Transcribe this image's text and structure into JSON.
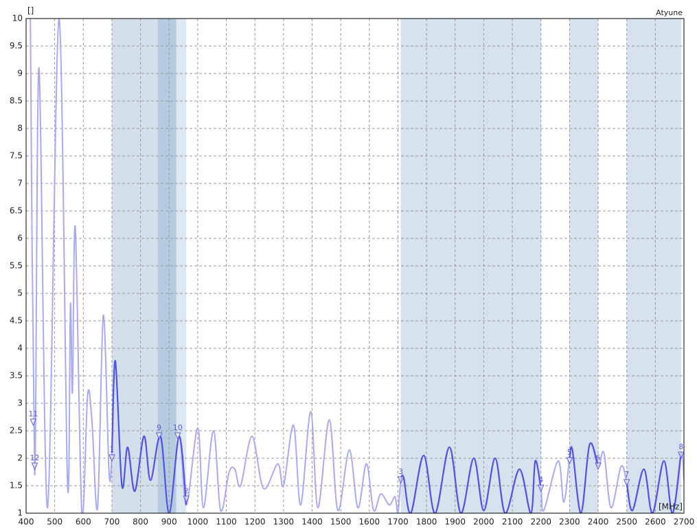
{
  "chart_data": {
    "type": "line",
    "y_unit": "[]",
    "x_unit": "[MHz]",
    "corner_label": "Atyune",
    "x": [
      415,
      430,
      445,
      475,
      515,
      545,
      555,
      562,
      572,
      595,
      615,
      630,
      650,
      670,
      690,
      700,
      712,
      735,
      755,
      780,
      812,
      835,
      870,
      900,
      935,
      960,
      1000,
      1020,
      1055,
      1080,
      1110,
      1130,
      1150,
      1190,
      1230,
      1280,
      1300,
      1335,
      1360,
      1395,
      1420,
      1460,
      1490,
      1530,
      1560,
      1590,
      1615,
      1640,
      1670,
      1690,
      1700,
      1710,
      1720,
      1745,
      1790,
      1830,
      1880,
      1920,
      1965,
      2000,
      2040,
      2075,
      2125,
      2165,
      2180,
      2200,
      2210,
      2260,
      2280,
      2300,
      2310,
      2340,
      2370,
      2400,
      2420,
      2445,
      2480,
      2500,
      2520,
      2560,
      2590,
      2630,
      2660,
      2690,
      2700
    ],
    "series": [
      {
        "color": "#aaaaf4",
        "highlight_color": "#5252e6",
        "values": [
          10,
          1.7,
          9.1,
          1.1,
          10,
          1.5,
          4.8,
          3.2,
          6.2,
          1.0,
          3.15,
          2.7,
          1.1,
          4.6,
          1.75,
          2.1,
          3.77,
          1.5,
          2.2,
          1.4,
          2.4,
          1.6,
          2.4,
          1.0,
          2.4,
          1.15,
          2.55,
          1.1,
          2.5,
          1.05,
          1.75,
          1.8,
          1.5,
          2.4,
          1.45,
          1.9,
          1.5,
          2.6,
          1.15,
          2.85,
          1.1,
          2.7,
          1.05,
          2.15,
          1.1,
          1.9,
          1.05,
          1.35,
          1.15,
          1.3,
          1.0,
          1.6,
          1.65,
          1.0,
          2.05,
          1.0,
          2.2,
          1.0,
          2.0,
          1.05,
          2.0,
          1.0,
          1.8,
          1.0,
          1.95,
          1.45,
          1.05,
          1.95,
          1.2,
          2.0,
          2.15,
          1.0,
          2.25,
          1.85,
          2.1,
          1.1,
          1.85,
          1.55,
          1.05,
          1.8,
          1.0,
          1.95,
          1.0,
          2.1,
          1.6
        ]
      }
    ],
    "bands": [
      {
        "xlim": [
          700,
          860
        ],
        "color": "#d3e0ec"
      },
      {
        "xlim": [
          860,
          925
        ],
        "color": "#b5cbe0"
      },
      {
        "xlim": [
          925,
          960
        ],
        "color": "#dce7f2"
      },
      {
        "xlim": [
          1710,
          2200
        ],
        "color": "#d6e2ee"
      },
      {
        "xlim": [
          2300,
          2400
        ],
        "color": "#d6e2ee"
      },
      {
        "xlim": [
          2500,
          2690
        ],
        "color": "#d6e2ee"
      }
    ],
    "markers": [
      {
        "label": "1",
        "x": 700,
        "y": 2.0
      },
      {
        "label": "2",
        "x": 960,
        "y": 1.25
      },
      {
        "label": "3",
        "x": 1710,
        "y": 1.6
      },
      {
        "label": "4",
        "x": 2200,
        "y": 1.45
      },
      {
        "label": "5",
        "x": 2300,
        "y": 1.95
      },
      {
        "label": "6",
        "x": 2400,
        "y": 1.85
      },
      {
        "label": "7",
        "x": 2500,
        "y": 1.55
      },
      {
        "label": "8",
        "x": 2690,
        "y": 2.05
      },
      {
        "label": "9",
        "x": 865,
        "y": 2.4
      },
      {
        "label": "10",
        "x": 930,
        "y": 2.4
      },
      {
        "label": "11",
        "x": 425,
        "y": 2.65
      },
      {
        "label": "12",
        "x": 430,
        "y": 1.85
      }
    ],
    "xlim": [
      400,
      2700
    ],
    "ylim": [
      1,
      10
    ],
    "xticks": [
      400,
      500,
      600,
      700,
      800,
      900,
      1000,
      1100,
      1200,
      1300,
      1400,
      1500,
      1600,
      1700,
      1800,
      1900,
      2000,
      2100,
      2200,
      2300,
      2400,
      2500,
      2600,
      2700
    ],
    "yticks": [
      1,
      1.5,
      2,
      2.5,
      3,
      3.5,
      4,
      4.5,
      5,
      5.5,
      6,
      6.5,
      7,
      7.5,
      8,
      8.5,
      9,
      9.5,
      10
    ],
    "grid": true
  }
}
